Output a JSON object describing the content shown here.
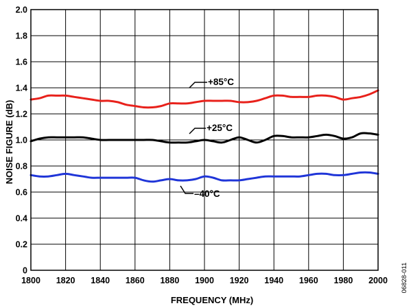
{
  "chart_data": {
    "type": "line",
    "title": "",
    "xlabel": "FREQUENCY (MHz)",
    "ylabel": "NOISE FIGURE (dB)",
    "xlim": [
      1800,
      2000
    ],
    "ylim": [
      0,
      2.0
    ],
    "grid": true,
    "x_ticks": [
      "1800",
      "1820",
      "1840",
      "1860",
      "1880",
      "1900",
      "1920",
      "1940",
      "1960",
      "1980",
      "2000"
    ],
    "y_ticks": [
      "0",
      "0.2",
      "0.4",
      "0.6",
      "0.8",
      "1.0",
      "1.2",
      "1.4",
      "1.6",
      "1.8",
      "2.0"
    ],
    "annotations": [
      "+85°C",
      "+25°C",
      "–40°C"
    ],
    "figure_id": "06828-011",
    "series": [
      {
        "name": "+85°C",
        "color": "#e8211b",
        "points": [
          [
            1800,
            1.31
          ],
          [
            1805,
            1.32
          ],
          [
            1810,
            1.34
          ],
          [
            1815,
            1.34
          ],
          [
            1820,
            1.34
          ],
          [
            1825,
            1.33
          ],
          [
            1830,
            1.32
          ],
          [
            1835,
            1.31
          ],
          [
            1840,
            1.3
          ],
          [
            1845,
            1.3
          ],
          [
            1850,
            1.29
          ],
          [
            1855,
            1.27
          ],
          [
            1860,
            1.26
          ],
          [
            1865,
            1.25
          ],
          [
            1870,
            1.25
          ],
          [
            1875,
            1.26
          ],
          [
            1880,
            1.28
          ],
          [
            1885,
            1.28
          ],
          [
            1890,
            1.28
          ],
          [
            1895,
            1.29
          ],
          [
            1900,
            1.3
          ],
          [
            1905,
            1.3
          ],
          [
            1910,
            1.3
          ],
          [
            1915,
            1.3
          ],
          [
            1920,
            1.29
          ],
          [
            1925,
            1.29
          ],
          [
            1930,
            1.3
          ],
          [
            1935,
            1.32
          ],
          [
            1940,
            1.34
          ],
          [
            1945,
            1.34
          ],
          [
            1950,
            1.33
          ],
          [
            1955,
            1.33
          ],
          [
            1960,
            1.33
          ],
          [
            1965,
            1.34
          ],
          [
            1970,
            1.34
          ],
          [
            1975,
            1.33
          ],
          [
            1980,
            1.31
          ],
          [
            1985,
            1.32
          ],
          [
            1990,
            1.33
          ],
          [
            1995,
            1.35
          ],
          [
            2000,
            1.38
          ]
        ]
      },
      {
        "name": "+25°C",
        "color": "#000000",
        "points": [
          [
            1800,
            0.99
          ],
          [
            1805,
            1.01
          ],
          [
            1810,
            1.02
          ],
          [
            1815,
            1.02
          ],
          [
            1820,
            1.02
          ],
          [
            1825,
            1.02
          ],
          [
            1830,
            1.02
          ],
          [
            1835,
            1.01
          ],
          [
            1840,
            1.0
          ],
          [
            1845,
            1.0
          ],
          [
            1850,
            1.0
          ],
          [
            1855,
            1.0
          ],
          [
            1860,
            1.0
          ],
          [
            1865,
            1.0
          ],
          [
            1870,
            1.0
          ],
          [
            1875,
            0.99
          ],
          [
            1880,
            0.98
          ],
          [
            1885,
            0.98
          ],
          [
            1890,
            0.98
          ],
          [
            1895,
            0.99
          ],
          [
            1900,
            1.0
          ],
          [
            1905,
            0.99
          ],
          [
            1910,
            0.98
          ],
          [
            1915,
            1.0
          ],
          [
            1920,
            1.02
          ],
          [
            1925,
            1.0
          ],
          [
            1930,
            0.98
          ],
          [
            1935,
            1.0
          ],
          [
            1940,
            1.03
          ],
          [
            1945,
            1.03
          ],
          [
            1950,
            1.02
          ],
          [
            1955,
            1.02
          ],
          [
            1960,
            1.02
          ],
          [
            1965,
            1.03
          ],
          [
            1970,
            1.04
          ],
          [
            1975,
            1.03
          ],
          [
            1980,
            1.01
          ],
          [
            1985,
            1.02
          ],
          [
            1990,
            1.05
          ],
          [
            1995,
            1.05
          ],
          [
            2000,
            1.04
          ]
        ]
      },
      {
        "name": "–40°C",
        "color": "#1f35d8",
        "points": [
          [
            1800,
            0.73
          ],
          [
            1805,
            0.72
          ],
          [
            1810,
            0.72
          ],
          [
            1815,
            0.73
          ],
          [
            1820,
            0.74
          ],
          [
            1825,
            0.73
          ],
          [
            1830,
            0.72
          ],
          [
            1835,
            0.71
          ],
          [
            1840,
            0.71
          ],
          [
            1845,
            0.71
          ],
          [
            1850,
            0.71
          ],
          [
            1855,
            0.71
          ],
          [
            1860,
            0.71
          ],
          [
            1865,
            0.69
          ],
          [
            1870,
            0.68
          ],
          [
            1875,
            0.69
          ],
          [
            1880,
            0.7
          ],
          [
            1885,
            0.69
          ],
          [
            1890,
            0.69
          ],
          [
            1895,
            0.7
          ],
          [
            1900,
            0.72
          ],
          [
            1905,
            0.71
          ],
          [
            1910,
            0.69
          ],
          [
            1915,
            0.69
          ],
          [
            1920,
            0.69
          ],
          [
            1925,
            0.7
          ],
          [
            1930,
            0.71
          ],
          [
            1935,
            0.72
          ],
          [
            1940,
            0.72
          ],
          [
            1945,
            0.72
          ],
          [
            1950,
            0.72
          ],
          [
            1955,
            0.72
          ],
          [
            1960,
            0.73
          ],
          [
            1965,
            0.74
          ],
          [
            1970,
            0.74
          ],
          [
            1975,
            0.73
          ],
          [
            1980,
            0.73
          ],
          [
            1985,
            0.74
          ],
          [
            1990,
            0.75
          ],
          [
            1995,
            0.75
          ],
          [
            2000,
            0.74
          ]
        ]
      }
    ]
  }
}
